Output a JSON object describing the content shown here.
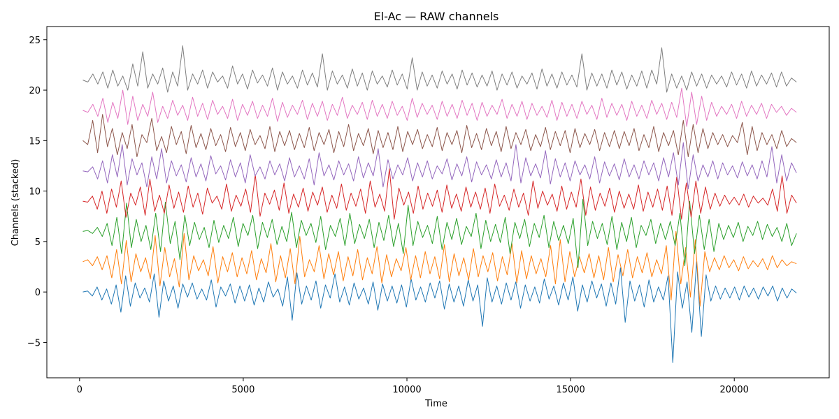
{
  "chart_data": {
    "type": "line",
    "title": "El-Ac — RAW channels",
    "xlabel": "Time",
    "ylabel": "Channels (stacked)",
    "xlim": [
      -1000,
      22900
    ],
    "ylim": [
      -8.5,
      26.3
    ],
    "x_ticks": [
      0,
      5000,
      10000,
      15000,
      20000
    ],
    "x_tick_labels": [
      "0",
      "5000",
      "10000",
      "15000",
      "20000"
    ],
    "y_ticks": [
      -5,
      0,
      5,
      10,
      15,
      20,
      25
    ],
    "y_tick_labels": [
      "−5",
      "0",
      "5",
      "10",
      "15",
      "20",
      "25"
    ],
    "grid": false,
    "x_range": [
      100,
      21900
    ],
    "series": [
      {
        "offset": 0,
        "color": "#1f77b4",
        "values": [
          0.0,
          0.1,
          -0.4,
          0.5,
          -0.8,
          0.3,
          -1.2,
          0.7,
          -2.0,
          1.6,
          -1.4,
          0.9,
          -0.6,
          0.4,
          -1.0,
          1.8,
          -2.5,
          1.1,
          -0.9,
          0.6,
          -1.6,
          0.8,
          -0.5,
          0.9,
          -0.7,
          0.3,
          -0.8,
          1.2,
          -1.5,
          0.5,
          -0.4,
          0.8,
          -1.1,
          0.6,
          -0.9,
          0.7,
          -1.3,
          0.4,
          -1.0,
          1.0,
          -0.5,
          0.3,
          -1.4,
          1.5,
          -2.8,
          1.9,
          -1.2,
          0.6,
          -0.8,
          1.1,
          -1.6,
          0.7,
          -0.6,
          1.8,
          -1.0,
          0.5,
          -1.3,
          0.9,
          -0.7,
          0.4,
          -1.2,
          1.0,
          -1.8,
          0.8,
          -0.9,
          0.6,
          -1.1,
          0.7,
          -1.5,
          1.3,
          -0.8,
          0.5,
          -1.0,
          0.9,
          -0.6,
          1.1,
          -1.7,
          0.8,
          -1.0,
          0.6,
          -1.4,
          1.2,
          -0.9,
          0.7,
          -3.4,
          1.4,
          -1.0,
          0.6,
          -1.2,
          0.9,
          -0.8,
          1.0,
          -1.6,
          0.7,
          -0.9,
          0.5,
          -1.1,
          1.3,
          -0.7,
          0.6,
          -1.3,
          0.9,
          -0.8,
          1.5,
          -1.9,
          0.7,
          -1.0,
          1.1,
          -0.6,
          0.8,
          -1.4,
          0.9,
          -1.2,
          2.4,
          -3.0,
          1.1,
          -0.9,
          0.7,
          -1.5,
          1.2,
          -1.0,
          0.5,
          -0.8,
          1.6,
          -7.0,
          2.0,
          -1.6,
          1.0,
          -4.0,
          3.0,
          -4.4,
          1.7,
          -0.9,
          0.6,
          -0.7,
          0.4,
          -0.6,
          0.5,
          -0.8,
          0.6,
          -0.5,
          0.4,
          -0.7,
          0.5,
          -0.4,
          0.6,
          -0.9,
          0.4,
          -0.6,
          0.3,
          -0.1
        ]
      },
      {
        "offset": 3,
        "color": "#ff7f0e",
        "values": [
          3.0,
          3.2,
          2.6,
          3.5,
          2.2,
          3.6,
          1.4,
          4.2,
          0.8,
          5.1,
          1.0,
          3.8,
          2.0,
          3.4,
          1.3,
          5.6,
          0.6,
          4.4,
          1.5,
          3.3,
          0.5,
          5.8,
          1.2,
          3.6,
          2.1,
          3.2,
          1.6,
          4.5,
          0.9,
          3.5,
          2.0,
          3.9,
          1.5,
          3.4,
          1.8,
          4.1,
          1.2,
          3.3,
          1.9,
          4.8,
          1.0,
          3.6,
          1.4,
          4.3,
          0.8,
          5.5,
          1.5,
          3.2,
          2.0,
          4.6,
          1.3,
          3.8,
          1.7,
          4.0,
          1.1,
          3.5,
          1.6,
          4.2,
          1.2,
          3.4,
          1.8,
          4.5,
          0.9,
          3.7,
          1.5,
          3.3,
          2.1,
          4.4,
          1.2,
          3.6,
          1.4,
          4.0,
          1.8,
          3.5,
          1.3,
          4.7,
          1.0,
          3.8,
          1.6,
          3.4,
          1.2,
          4.3,
          1.5,
          3.6,
          2.0,
          3.9,
          1.1,
          3.5,
          1.7,
          4.8,
          0.9,
          4.1,
          1.3,
          3.6,
          1.8,
          3.3,
          1.5,
          4.6,
          0.8,
          5.2,
          1.0,
          4.0,
          1.5,
          3.5,
          1.9,
          3.8,
          1.4,
          3.6,
          1.2,
          4.4,
          1.0,
          3.7,
          1.6,
          4.2,
          1.4,
          3.5,
          1.9,
          3.9,
          1.5,
          3.2,
          1.8,
          4.6,
          -0.8,
          6.0,
          0.8,
          4.4,
          -0.5,
          5.2,
          -1.4,
          4.0,
          2.0,
          3.4,
          2.2,
          3.6,
          2.4,
          3.2,
          2.1,
          3.5,
          2.3,
          3.1,
          2.5,
          3.3,
          2.2,
          3.6,
          2.4,
          3.2,
          2.6,
          3.0,
          2.8
        ]
      },
      {
        "offset": 6,
        "color": "#2ca02c",
        "values": [
          6.0,
          6.1,
          5.8,
          6.4,
          5.5,
          6.8,
          4.6,
          7.4,
          3.8,
          8.8,
          4.4,
          7.2,
          5.0,
          6.6,
          4.2,
          7.8,
          4.0,
          8.9,
          4.8,
          7.0,
          3.2,
          7.6,
          4.6,
          6.9,
          5.2,
          6.4,
          4.4,
          7.1,
          4.9,
          6.6,
          5.3,
          7.4,
          4.5,
          6.8,
          5.6,
          7.6,
          4.3,
          6.9,
          5.4,
          7.2,
          4.7,
          6.5,
          5.0,
          7.9,
          4.4,
          7.1,
          5.6,
          6.8,
          4.9,
          7.5,
          4.2,
          6.6,
          5.5,
          7.3,
          4.6,
          7.8,
          4.8,
          6.7,
          5.3,
          7.2,
          4.4,
          6.9,
          5.1,
          7.6,
          4.5,
          6.8,
          3.8,
          8.6,
          4.6,
          7.0,
          5.4,
          6.6,
          4.8,
          7.5,
          4.2,
          6.9,
          5.2,
          7.3,
          4.7,
          6.5,
          5.5,
          7.8,
          4.3,
          7.1,
          5.0,
          6.7,
          4.9,
          7.4,
          3.8,
          6.9,
          5.3,
          7.2,
          4.5,
          6.8,
          5.4,
          7.6,
          4.4,
          7.0,
          5.1,
          6.6,
          4.8,
          7.3,
          2.4,
          9.2,
          4.6,
          7.0,
          5.3,
          6.8,
          4.7,
          7.5,
          4.2,
          6.9,
          5.0,
          7.4,
          4.4,
          6.6,
          5.6,
          7.2,
          4.8,
          6.8,
          5.2,
          7.0,
          4.6,
          7.8,
          2.6,
          9.0,
          3.8,
          7.6,
          4.2,
          7.2,
          4.0,
          6.8,
          5.2,
          6.6,
          5.4,
          6.9,
          5.0,
          6.5,
          5.6,
          7.0,
          5.2,
          6.7,
          5.5,
          6.4,
          5.0,
          6.8,
          4.6,
          5.8
        ]
      },
      {
        "offset": 9,
        "color": "#d62728",
        "values": [
          9.0,
          8.9,
          9.5,
          8.2,
          10.0,
          7.8,
          10.2,
          8.4,
          11.0,
          7.4,
          9.8,
          8.6,
          10.4,
          7.6,
          11.2,
          8.0,
          9.6,
          7.8,
          10.6,
          8.3,
          9.9,
          7.9,
          10.5,
          8.4,
          9.8,
          7.7,
          10.3,
          8.8,
          9.5,
          8.2,
          10.7,
          8.0,
          9.6,
          8.5,
          10.2,
          7.9,
          11.6,
          7.5,
          9.8,
          8.7,
          10.1,
          8.1,
          10.8,
          7.8,
          9.7,
          8.4,
          10.3,
          8.0,
          9.9,
          8.6,
          10.4,
          7.9,
          9.6,
          8.3,
          10.7,
          8.1,
          9.8,
          8.5,
          10.2,
          7.8,
          11.0,
          8.4,
          9.7,
          8.0,
          12.2,
          7.2,
          10.3,
          8.6,
          9.9,
          7.8,
          10.5,
          8.2,
          9.8,
          8.5,
          10.1,
          7.9,
          10.6,
          8.3,
          9.7,
          8.0,
          10.4,
          8.4,
          9.9,
          8.2,
          10.3,
          7.8,
          10.7,
          8.5,
          9.6,
          8.1,
          10.2,
          8.4,
          9.8,
          7.6,
          11.0,
          8.3,
          10.0,
          8.6,
          9.7,
          8.0,
          10.5,
          8.2,
          9.9,
          8.4,
          11.2,
          7.6,
          10.4,
          8.1,
          9.8,
          8.5,
          10.3,
          7.9,
          10.0,
          8.3,
          9.7,
          8.2,
          10.6,
          8.0,
          9.9,
          8.4,
          10.2,
          8.1,
          10.5,
          7.6,
          11.4,
          7.2,
          10.8,
          7.4,
          11.0,
          7.8,
          10.4,
          8.2,
          9.8,
          8.5,
          9.6,
          8.7,
          9.4,
          8.6,
          9.7,
          8.4,
          9.5,
          8.8,
          9.3,
          8.6,
          10.2,
          8.0,
          11.5,
          7.8,
          9.6,
          8.8
        ]
      },
      {
        "offset": 12,
        "color": "#9467bd",
        "values": [
          12.0,
          11.9,
          12.4,
          11.2,
          13.0,
          10.8,
          13.6,
          11.4,
          14.6,
          10.6,
          13.2,
          11.6,
          12.8,
          10.4,
          13.4,
          11.2,
          14.2,
          10.8,
          13.0,
          11.5,
          12.6,
          10.9,
          13.3,
          11.4,
          12.7,
          11.0,
          13.5,
          11.7,
          12.5,
          11.1,
          13.1,
          11.4,
          12.8,
          10.8,
          13.6,
          11.5,
          12.4,
          11.2,
          13.0,
          11.6,
          12.7,
          11.0,
          13.3,
          11.4,
          12.5,
          11.2,
          13.2,
          10.6,
          13.8,
          11.5,
          12.6,
          11.1,
          13.0,
          11.6,
          12.7,
          11.0,
          13.4,
          11.3,
          12.8,
          11.5,
          14.2,
          10.4,
          13.1,
          11.2,
          12.6,
          11.6,
          13.3,
          11.0,
          12.8,
          11.4,
          13.0,
          11.2,
          12.5,
          11.7,
          13.2,
          11.1,
          12.7,
          11.5,
          13.4,
          10.9,
          12.9,
          11.6,
          12.6,
          11.2,
          13.1,
          11.4,
          12.8,
          11.0,
          14.6,
          10.8,
          13.3,
          11.5,
          12.7,
          11.3,
          14.0,
          10.7,
          13.2,
          11.4,
          12.8,
          11.0,
          13.0,
          11.6,
          12.6,
          11.2,
          13.4,
          10.8,
          12.9,
          11.5,
          12.7,
          11.1,
          13.2,
          11.4,
          12.6,
          11.2,
          13.0,
          11.6,
          12.8,
          11.0,
          13.3,
          11.4,
          13.8,
          10.6,
          14.8,
          10.2,
          13.6,
          11.0,
          12.6,
          11.4,
          13.0,
          11.2,
          12.8,
          11.6,
          12.5,
          11.3,
          12.9,
          11.5,
          12.6,
          11.2,
          13.0,
          11.4,
          14.4,
          10.8,
          13.6,
          11.0,
          12.8,
          11.8
        ]
      },
      {
        "offset": 15,
        "color": "#8c564b",
        "values": [
          15.0,
          14.6,
          17.0,
          13.8,
          17.6,
          14.4,
          16.2,
          13.6,
          15.8,
          14.2,
          16.6,
          13.4,
          15.6,
          14.8,
          17.2,
          14.0,
          15.4,
          13.8,
          16.4,
          14.6,
          15.9,
          13.7,
          16.5,
          14.3,
          15.7,
          14.1,
          16.2,
          14.5,
          15.6,
          13.9,
          16.3,
          14.4,
          15.8,
          14.0,
          16.1,
          14.6,
          15.5,
          14.2,
          16.4,
          13.9,
          15.9,
          14.5,
          16.0,
          14.1,
          15.7,
          14.3,
          16.3,
          14.0,
          15.8,
          14.6,
          16.1,
          13.8,
          15.9,
          14.4,
          16.6,
          14.0,
          15.7,
          14.5,
          16.2,
          13.7,
          16.0,
          14.3,
          15.8,
          14.1,
          16.4,
          13.9,
          15.9,
          14.6,
          16.1,
          14.2,
          15.6,
          14.4,
          16.3,
          14.0,
          15.8,
          14.6,
          16.0,
          13.8,
          16.5,
          14.3,
          15.7,
          14.1,
          16.2,
          14.5,
          15.9,
          13.9,
          16.4,
          14.2,
          15.8,
          14.6,
          16.1,
          14.0,
          15.6,
          14.4,
          16.3,
          14.1,
          15.9,
          14.5,
          16.0,
          13.8,
          16.2,
          14.3,
          15.7,
          14.6,
          16.1,
          14.0,
          15.8,
          14.4,
          16.0,
          14.2,
          15.9,
          14.5,
          16.2,
          14.0,
          15.6,
          14.3,
          16.4,
          13.9,
          15.8,
          14.5,
          16.0,
          13.6,
          17.0,
          13.4,
          16.6,
          13.8,
          16.2,
          14.2,
          15.8,
          14.6,
          15.6,
          14.4,
          15.5,
          14.8,
          16.8,
          13.6,
          16.4,
          14.0,
          15.8,
          14.6,
          15.6,
          14.2,
          16.0,
          14.4,
          15.2,
          14.8
        ]
      },
      {
        "offset": 18,
        "color": "#e377c2",
        "values": [
          18.0,
          17.8,
          18.6,
          17.4,
          19.2,
          16.8,
          18.8,
          17.2,
          20.0,
          16.6,
          19.4,
          17.0,
          18.6,
          17.4,
          19.8,
          16.8,
          18.4,
          17.2,
          19.0,
          17.5,
          18.5,
          17.0,
          19.3,
          17.4,
          18.7,
          17.1,
          19.0,
          17.6,
          18.4,
          17.2,
          19.1,
          17.0,
          18.6,
          17.5,
          18.9,
          17.2,
          18.5,
          17.4,
          19.2,
          16.9,
          18.8,
          17.3,
          18.5,
          17.6,
          19.0,
          17.1,
          18.7,
          17.4,
          18.9,
          17.0,
          18.6,
          17.5,
          19.3,
          17.2,
          18.5,
          17.6,
          18.8,
          17.1,
          19.0,
          17.4,
          18.6,
          17.2,
          18.9,
          17.5,
          18.4,
          17.0,
          19.2,
          17.3,
          18.7,
          17.6,
          18.5,
          17.1,
          18.9,
          17.4,
          18.6,
          17.2,
          19.0,
          17.5,
          18.7,
          17.0,
          18.8,
          17.4,
          18.5,
          17.6,
          19.1,
          17.2,
          18.6,
          17.4,
          18.9,
          17.1,
          18.7,
          17.5,
          18.4,
          17.3,
          19.0,
          17.0,
          18.8,
          17.4,
          18.6,
          17.2,
          18.9,
          17.6,
          18.5,
          17.1,
          19.2,
          17.3,
          18.7,
          17.5,
          18.6,
          17.0,
          18.9,
          17.4,
          18.5,
          17.2,
          19.0,
          17.6,
          18.7,
          17.1,
          18.8,
          17.3,
          20.2,
          16.4,
          19.8,
          16.6,
          19.4,
          17.0,
          18.8,
          17.4,
          18.4,
          17.6,
          18.6,
          17.2,
          18.9,
          17.4,
          18.5,
          17.6,
          18.7,
          17.2,
          18.6,
          17.8,
          18.4,
          17.5,
          18.2,
          17.8
        ]
      },
      {
        "offset": 21,
        "color": "#7f7f7f",
        "values": [
          21.0,
          20.8,
          21.6,
          20.6,
          21.8,
          20.2,
          22.0,
          20.4,
          21.4,
          20.0,
          22.6,
          20.4,
          23.8,
          20.2,
          21.6,
          20.6,
          22.2,
          19.8,
          21.8,
          20.4,
          24.4,
          20.0,
          21.6,
          20.6,
          22.0,
          20.2,
          21.8,
          20.8,
          21.4,
          20.2,
          22.4,
          20.6,
          21.6,
          20.1,
          22.0,
          20.7,
          21.5,
          20.4,
          22.2,
          20.0,
          21.8,
          20.6,
          21.4,
          20.2,
          22.0,
          20.5,
          21.7,
          20.3,
          23.6,
          20.0,
          21.9,
          20.6,
          21.5,
          20.2,
          22.1,
          20.4,
          21.7,
          20.0,
          21.9,
          20.6,
          21.4,
          20.3,
          22.0,
          20.5,
          21.6,
          20.1,
          23.2,
          20.0,
          21.8,
          20.4,
          21.5,
          20.2,
          21.9,
          20.6,
          21.6,
          20.1,
          22.0,
          20.5,
          21.7,
          20.3,
          21.5,
          20.4,
          21.9,
          20.0,
          21.6,
          20.5,
          21.8,
          20.2,
          21.4,
          20.6,
          21.7,
          20.1,
          22.1,
          20.4,
          21.6,
          20.2,
          21.8,
          20.5,
          21.5,
          20.3,
          23.6,
          20.0,
          21.7,
          20.4,
          21.6,
          20.2,
          22.0,
          20.5,
          21.8,
          20.1,
          21.5,
          20.4,
          21.9,
          20.2,
          22.0,
          20.6,
          24.2,
          19.8,
          21.6,
          20.2,
          21.4,
          20.0,
          21.8,
          20.4,
          21.6,
          20.2,
          21.5,
          20.6,
          21.4,
          20.3,
          21.8,
          20.5,
          21.6,
          20.2,
          21.9,
          20.4,
          21.5,
          20.6,
          21.7,
          20.3,
          21.8,
          20.4,
          21.2,
          20.8
        ]
      }
    ]
  }
}
